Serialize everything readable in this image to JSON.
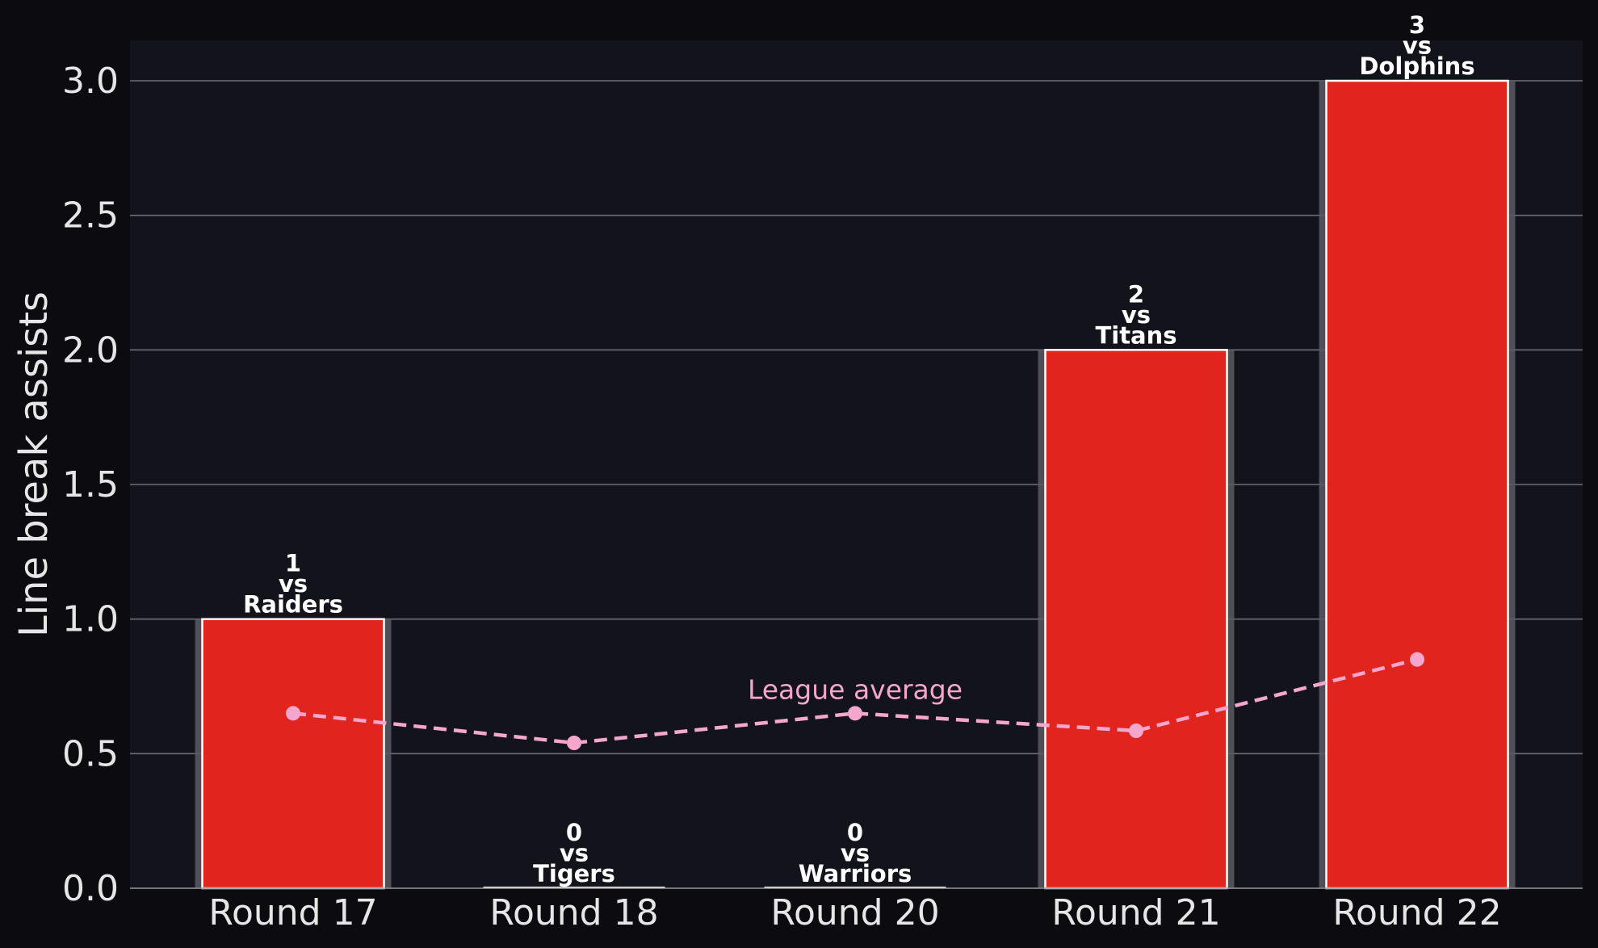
{
  "chart_data": {
    "type": "bar",
    "categories": [
      "Round 17",
      "Round 18",
      "Round 20",
      "Round 21",
      "Round 22"
    ],
    "values": [
      1,
      0,
      0,
      2,
      3
    ],
    "opponents": [
      "Raiders",
      "Tigers",
      "Warriors",
      "Titans",
      "Dolphins"
    ],
    "bar_labels": [
      [
        "1",
        "vs",
        "Raiders"
      ],
      [
        "0",
        "vs",
        "Tigers"
      ],
      [
        "0",
        "vs",
        "Warriors"
      ],
      [
        "2",
        "vs",
        "Titans"
      ],
      [
        "3",
        "vs",
        "Dolphins"
      ]
    ],
    "series": [
      {
        "name": "League average",
        "values": [
          0.65,
          0.54,
          0.65,
          0.585,
          0.85
        ]
      }
    ],
    "title": "",
    "xlabel": "",
    "ylabel": "Line break assists",
    "ylim": [
      0,
      3.15
    ],
    "yticks": [
      0.0,
      0.5,
      1.0,
      1.5,
      2.0,
      2.5,
      3.0
    ],
    "ytick_labels": [
      "0.0",
      "0.5",
      "1.0",
      "1.5",
      "2.0",
      "2.5",
      "3.0"
    ],
    "grid": true,
    "colors": {
      "background": "#0c0c10",
      "plot_background": "#13131b",
      "bar": "#e1241d",
      "bar_edge": "#ffffff",
      "bar_glow": "#5a5a62",
      "grid": "#6e6e74",
      "average_line": "#f5a6cd",
      "text": "#e6e6e6"
    }
  }
}
